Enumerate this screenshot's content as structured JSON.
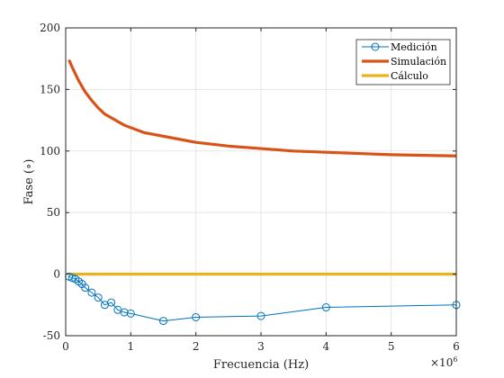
{
  "chart_data": {
    "type": "line",
    "xlabel": "Frecuencia (Hz)",
    "ylabel": "Fase (∘)",
    "x_exponent_label": "×10",
    "x_exponent_power": "6",
    "xlim": [
      0,
      6
    ],
    "ylim": [
      -50,
      200
    ],
    "x_scale_multiplier": 1000000,
    "x_ticks": [
      0,
      1,
      2,
      3,
      4,
      5,
      6
    ],
    "y_ticks": [
      -50,
      0,
      50,
      100,
      150,
      200
    ],
    "grid": true,
    "legend_position": "top-right",
    "series": [
      {
        "name": "Medición",
        "color": "#0072BD",
        "marker": "circle",
        "line_width": "thin",
        "x": [
          0.05,
          0.1,
          0.15,
          0.2,
          0.25,
          0.3,
          0.4,
          0.5,
          0.6,
          0.7,
          0.8,
          0.9,
          1.0,
          1.5,
          2.0,
          3.0,
          4.0,
          6.0
        ],
        "y": [
          -2,
          -3,
          -4,
          -6,
          -8,
          -11,
          -15,
          -19,
          -25,
          -23,
          -29,
          -31,
          -32,
          -38,
          -35,
          -34,
          -27,
          -25
        ]
      },
      {
        "name": "Simulación",
        "color": "#D95319",
        "marker": "none",
        "line_width": "thick",
        "x": [
          0.05,
          0.1,
          0.2,
          0.3,
          0.4,
          0.5,
          0.6,
          0.7,
          0.8,
          0.9,
          1.0,
          1.2,
          1.5,
          2.0,
          2.5,
          3.0,
          3.5,
          4.0,
          4.5,
          5.0,
          5.5,
          6.0
        ],
        "y": [
          174,
          168,
          157,
          148,
          141,
          135,
          130,
          127,
          124,
          121,
          119,
          115,
          112,
          107,
          104,
          102,
          100,
          99,
          98,
          97,
          96.5,
          96
        ]
      },
      {
        "name": "Cálculo",
        "color": "#EDB120",
        "marker": "none",
        "line_width": "thick",
        "x": [
          0.05,
          6.0
        ],
        "y": [
          0,
          0
        ]
      }
    ]
  }
}
